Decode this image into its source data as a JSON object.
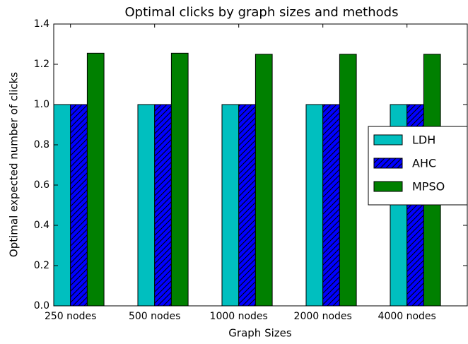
{
  "chart_data": {
    "type": "bar",
    "title": "Optimal clicks by graph sizes and methods",
    "x_label": "Graph Sizes",
    "y_label": "Optimal expected number of clicks",
    "categories": [
      "250 nodes",
      "500 nodes",
      "1000 nodes",
      "2000 nodes",
      "4000 nodes"
    ],
    "series": [
      {
        "name": "LDH",
        "color": "#00bfbf",
        "values": [
          1.0,
          1.0,
          1.0,
          1.0,
          1.0
        ]
      },
      {
        "name": "AHC",
        "color": "#0000ff",
        "hatch": "//",
        "values": [
          1.0,
          1.0,
          1.0,
          1.0,
          1.0
        ]
      },
      {
        "name": "MPSO",
        "color": "#008000",
        "values": [
          1.255,
          1.255,
          1.25,
          1.25,
          1.25
        ]
      }
    ],
    "ylim": [
      0,
      1.4
    ],
    "yticks": [
      {
        "value": 0,
        "label": "0.0"
      },
      0.2,
      0.4,
      0.6,
      0.8,
      {
        "value": 1,
        "label": "1.0"
      },
      1.2,
      1.4
    ],
    "legend": "center right",
    "grid": false
  }
}
